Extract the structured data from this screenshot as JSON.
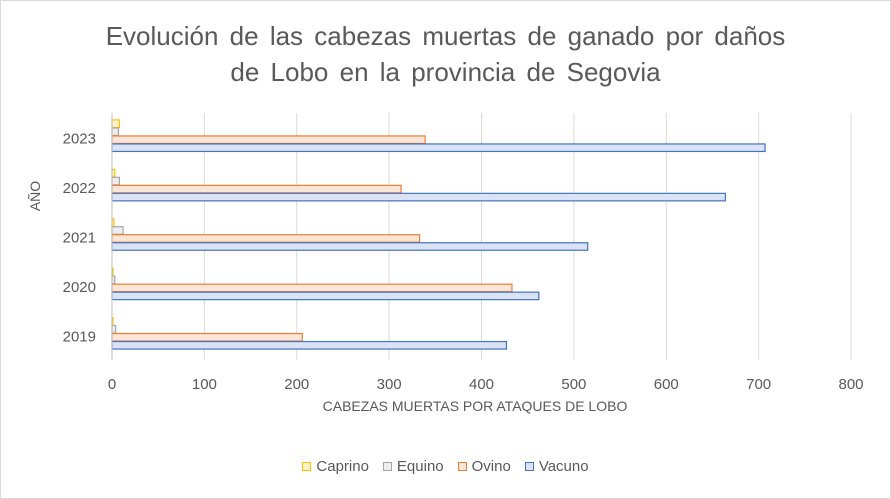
{
  "chart_data": {
    "type": "bar",
    "orientation": "horizontal",
    "title_lines": [
      "Evolución de las cabezas muertas de ganado por daños",
      "de Lobo en la provincia de Segovia"
    ],
    "xlabel": "CABEZAS MUERTAS POR ATAQUES DE LOBO",
    "ylabel": "AÑO",
    "xlim": [
      0,
      800
    ],
    "xticks": [
      0,
      100,
      200,
      300,
      400,
      500,
      600,
      700,
      800
    ],
    "categories": [
      "2019",
      "2020",
      "2021",
      "2022",
      "2023"
    ],
    "series": [
      {
        "name": "Caprino",
        "values": [
          1,
          1,
          2,
          3,
          8
        ],
        "fill": "#fff2cc",
        "stroke": "#ffc000"
      },
      {
        "name": "Equino",
        "values": [
          4,
          3,
          12,
          8,
          7
        ],
        "fill": "#ededed",
        "stroke": "#a5a5a5"
      },
      {
        "name": "Ovino",
        "values": [
          206,
          433,
          333,
          313,
          339
        ],
        "fill": "#fbe5d6",
        "stroke": "#ed7d31"
      },
      {
        "name": "Vacuno",
        "values": [
          427,
          462,
          515,
          664,
          707
        ],
        "fill": "#dae3f3",
        "stroke": "#4472c4"
      }
    ],
    "grid": "vertical",
    "legend_position": "bottom"
  }
}
